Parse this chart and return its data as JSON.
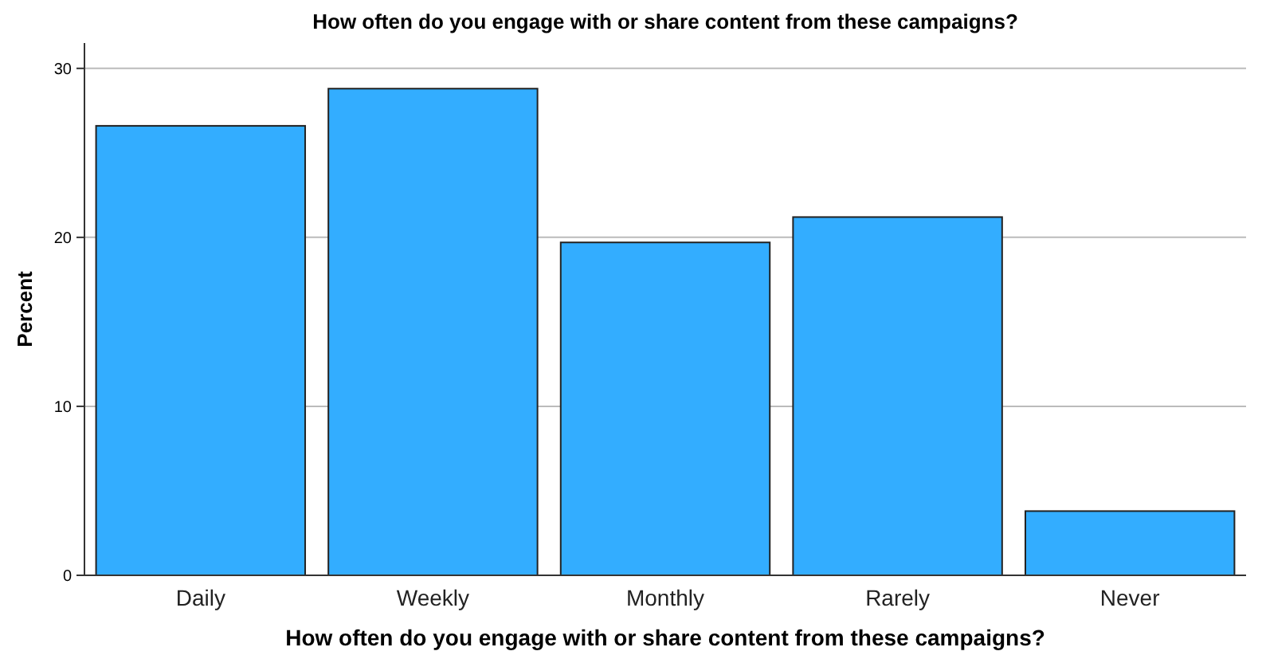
{
  "chart_data": {
    "type": "bar",
    "title": "How often do you engage with or share content from these campaigns?",
    "xlabel": "How often do you engage with or share content from these campaigns?",
    "ylabel": "Percent",
    "categories": [
      "Daily",
      "Weekly",
      "Monthly",
      "Rarely",
      "Never"
    ],
    "values": [
      26.6,
      28.8,
      19.7,
      21.2,
      3.8
    ],
    "color": "#33adff",
    "ylim": [
      0,
      31.5
    ],
    "yticks": [
      0,
      10,
      20,
      30
    ],
    "grid": "y"
  }
}
